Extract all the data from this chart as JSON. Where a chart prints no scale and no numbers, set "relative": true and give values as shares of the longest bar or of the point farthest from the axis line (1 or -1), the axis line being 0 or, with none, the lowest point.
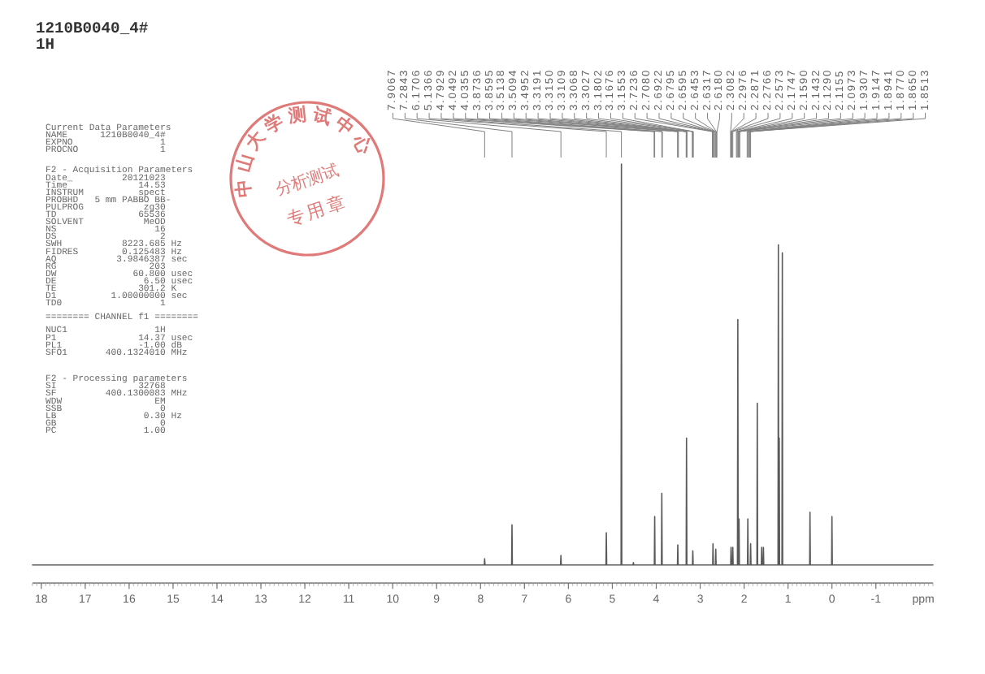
{
  "chart_data": {
    "type": "line",
    "title": "1210B0040_4#",
    "subtitle": "1H",
    "xlabel": "ppm",
    "relative": true,
    "color": "#5a5a5a",
    "xlim": [
      18.2,
      -2.3
    ],
    "xticks": [
      18,
      17,
      16,
      15,
      14,
      13,
      12,
      11,
      10,
      9,
      8,
      7,
      6,
      5,
      4,
      3,
      2,
      1,
      0,
      -1
    ],
    "x": [
      18.2,
      7.9147,
      7.9067,
      7.8987,
      7.2923,
      7.2843,
      7.2763,
      6.1786,
      6.1706,
      6.1626,
      5.1446,
      5.1366,
      5.1286,
      4.8009,
      4.7929,
      4.7849,
      4.528,
      4.52,
      4.512,
      4.0435,
      4.0355,
      4.0275,
      3.8816,
      3.8736,
      3.8656,
      3.5174,
      3.5094,
      3.5014,
      3.3189,
      3.3109,
      3.3029,
      3.1756,
      3.1676,
      3.1596,
      2.716,
      2.708,
      2.7,
      2.6533,
      2.6453,
      2.6373,
      2.3056,
      2.2976,
      2.2896,
      2.2653,
      2.2573,
      2.2493,
      2.1512,
      2.1432,
      2.1352,
      2.1235,
      2.1155,
      2.1075,
      1.9227,
      1.9147,
      1.9067,
      1.8593,
      1.8513,
      1.8433,
      1.708,
      1.7,
      1.692,
      1.608,
      1.6,
      1.592,
      1.568,
      1.56,
      1.552,
      1.228,
      1.22,
      1.212,
      1.208,
      1.2,
      1.192,
      1.138,
      1.13,
      1.122,
      0.508,
      0.5,
      0.492,
      0.008,
      0,
      -0.008,
      -2.3
    ],
    "values": [
      0.043,
      0.043,
      0.058,
      0.043,
      0.043,
      0.139,
      0.043,
      0.043,
      0.066,
      0.043,
      0.043,
      0.12,
      0.043,
      0.043,
      1,
      0.043,
      0.043,
      0.049,
      0.043,
      0.043,
      0.159,
      0.043,
      0.043,
      0.214,
      0.043,
      0.043,
      0.091,
      0.043,
      0.043,
      0.346,
      0.043,
      0.043,
      0.077,
      0.043,
      0.043,
      0.094,
      0.043,
      0.043,
      0.081,
      0.043,
      0.043,
      0.085,
      0.043,
      0.043,
      0.085,
      0.043,
      0.043,
      0.629,
      0.043,
      0.043,
      0.153,
      0.043,
      0.043,
      0.153,
      0.043,
      0.043,
      0.094,
      0.043,
      0.043,
      0.429,
      0.043,
      0.043,
      0.085,
      0.043,
      0.043,
      0.085,
      0.043,
      0.043,
      0.807,
      0.043,
      0.043,
      0.346,
      0.043,
      0.043,
      0.788,
      0.043,
      0.043,
      0.169,
      0.043,
      0.043,
      0.159,
      0.043,
      0.043
    ],
    "annotations": [
      "Current Data Parameters",
      "NAME      1210B0040_4#",
      "EXPNO                1",
      "PROCNO               1",
      "F2 - Acquisition Parameters",
      "Date_         20121023",
      "Time             14.53",
      "INSTRUM          spect",
      "PROBHD   5 mm PABBO BB-",
      "PULPROG           zg30",
      "TD               65536",
      "SOLVENT           MeOD",
      "NS                  16",
      "DS                   2",
      "SWH           8223.685 Hz",
      "FIDRES        0.125483 Hz",
      "AQ           3.9846387 sec",
      "RG                 203",
      "DW              60.800 usec",
      "DE                6.50 usec",
      "TE               301.2 K",
      "D1          1.00000000 sec",
      "TD0                  1",
      "======== CHANNEL f1 ========",
      "NUC1                1H",
      "P1               14.37 usec",
      "PL1              -1.00 dB",
      "SFO1       400.1324010 MHz",
      "F2 - Processing parameters",
      "SI               32768",
      "SF         400.1300083 MHz",
      "WDW                 EM",
      "SSB                  0",
      "LB                0.30 Hz",
      "GB                   0",
      "PC                1.00",
      "中山大学测试中心",
      "分析测试",
      "专用章",
      {
        "text": "7.9067",
        "x": 7.9067
      },
      {
        "text": "7.2843",
        "x": 7.2843
      },
      {
        "text": "6.1706",
        "x": 6.1706
      },
      {
        "text": "5.1366",
        "x": 5.1366
      },
      {
        "text": "4.7929",
        "x": 4.7929
      },
      {
        "text": "4.0492",
        "x": 4.0492
      },
      {
        "text": "4.0355",
        "x": 4.0355
      },
      {
        "text": "3.8736",
        "x": 3.8736
      },
      {
        "text": "3.8595",
        "x": 3.8595
      },
      {
        "text": "3.5138",
        "x": 3.5138
      },
      {
        "text": "3.5094",
        "x": 3.5094
      },
      {
        "text": "3.4952",
        "x": 3.4952
      },
      {
        "text": "3.3191",
        "x": 3.3191
      },
      {
        "text": "3.3150",
        "x": 3.315
      },
      {
        "text": "3.3109",
        "x": 3.3109
      },
      {
        "text": "3.3068",
        "x": 3.3068
      },
      {
        "text": "3.3027",
        "x": 3.3027
      },
      {
        "text": "3.1802",
        "x": 3.1802
      },
      {
        "text": "3.1676",
        "x": 3.1676
      },
      {
        "text": "3.1553",
        "x": 3.1553
      },
      {
        "text": "2.7236",
        "x": 2.7236
      },
      {
        "text": "2.7080",
        "x": 2.708
      },
      {
        "text": "2.6922",
        "x": 2.6922
      },
      {
        "text": "2.6795",
        "x": 2.6795
      },
      {
        "text": "2.6595",
        "x": 2.6595
      },
      {
        "text": "2.6453",
        "x": 2.6453
      },
      {
        "text": "2.6317",
        "x": 2.6317
      },
      {
        "text": "2.6180",
        "x": 2.618
      },
      {
        "text": "2.3082",
        "x": 2.3082
      },
      {
        "text": "2.2976",
        "x": 2.2976
      },
      {
        "text": "2.2871",
        "x": 2.2871
      },
      {
        "text": "2.2766",
        "x": 2.2766
      },
      {
        "text": "2.2573",
        "x": 2.2573
      },
      {
        "text": "2.1747",
        "x": 2.1747
      },
      {
        "text": "2.1590",
        "x": 2.159
      },
      {
        "text": "2.1432",
        "x": 2.1432
      },
      {
        "text": "2.1290",
        "x": 2.129
      },
      {
        "text": "2.1155",
        "x": 2.1155
      },
      {
        "text": "2.0973",
        "x": 2.0973
      },
      {
        "text": "1.9307",
        "x": 1.9307
      },
      {
        "text": "1.9147",
        "x": 1.9147
      },
      {
        "text": "1.8941",
        "x": 1.8941
      },
      {
        "text": "1.8770",
        "x": 1.877
      },
      {
        "text": "1.8650",
        "x": 1.865
      },
      {
        "text": "1.8513",
        "x": 1.8513
      }
    ]
  }
}
